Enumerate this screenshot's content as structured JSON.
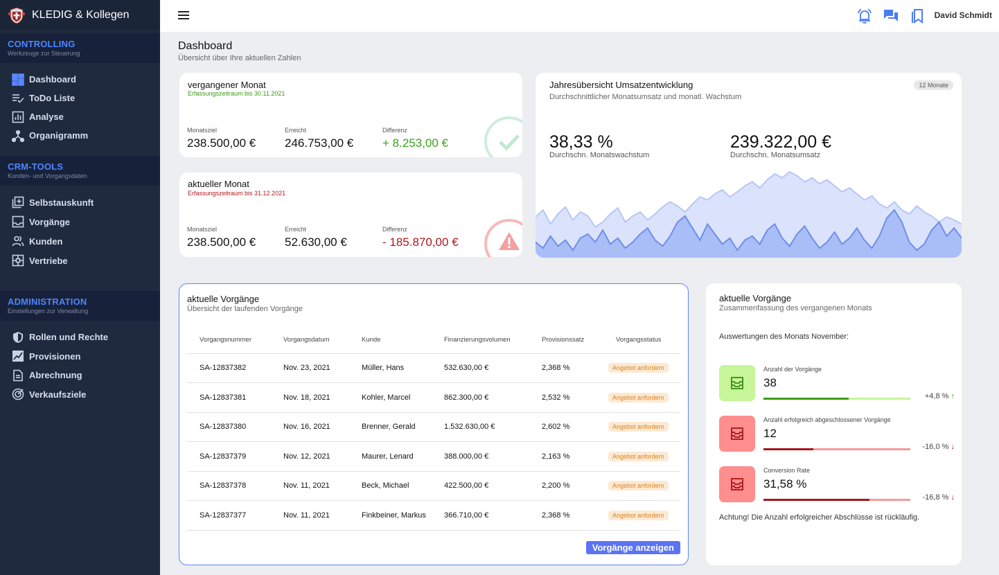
{
  "sidebar": {
    "brand": "KLEDIG & Kollegen",
    "sections": [
      {
        "title": "CONTROLLING",
        "subtitle": "Werkzeuge zur Steuerung",
        "items": [
          {
            "label": "Dashboard",
            "icon": "dashboard-icon"
          },
          {
            "label": "ToDo Liste",
            "icon": "checklist-icon"
          },
          {
            "label": "Analyse",
            "icon": "bar-chart-icon"
          },
          {
            "label": "Organigramm",
            "icon": "org-chart-icon"
          }
        ]
      },
      {
        "title": "CRM-TOOLS",
        "subtitle": "Kunden- und Vorgangsdaten",
        "items": [
          {
            "label": "Selbstauskunft",
            "icon": "add-document-icon"
          },
          {
            "label": "Vorgänge",
            "icon": "inbox-icon"
          },
          {
            "label": "Kunden",
            "icon": "users-icon"
          },
          {
            "label": "Vertriebe",
            "icon": "network-icon"
          }
        ]
      },
      {
        "title": "ADMINISTRATION",
        "subtitle": "Einstellungen zur Verwaltung",
        "items": [
          {
            "label": "Rollen und Rechte",
            "icon": "shield-icon"
          },
          {
            "label": "Provisionen",
            "icon": "trend-icon"
          },
          {
            "label": "Abrechnung",
            "icon": "document-icon"
          },
          {
            "label": "Verkaufsziele",
            "icon": "target-icon"
          }
        ]
      }
    ]
  },
  "topbar": {
    "user": "David Schmidt",
    "icons": [
      "alarm-icon",
      "chat-icon",
      "bookmarks-icon"
    ]
  },
  "page": {
    "title": "Dashboard",
    "subtitle": "Übersicht über Ihre aktuellen Zahlen"
  },
  "kpi_prev": {
    "title": "vergangener Monat",
    "period": "Erfassungszeitraum bis 30.11.2021",
    "period_color": "#3a9a12",
    "target_label": "Monatsziel",
    "target": "238.500,00 €",
    "reached_label": "Erreicht",
    "reached": "246.753,00 €",
    "diff_label": "Differenz",
    "diff": "+ 8.253,00 €",
    "diff_color": "#3aa317"
  },
  "kpi_curr": {
    "title": "aktueller Monat",
    "period": "Erfassungszeitraum bis 31.12.2021",
    "period_color": "#b3161b",
    "target_label": "Monatsziel",
    "target": "238.500,00 €",
    "reached_label": "Erreicht",
    "reached": "52.630,00 €",
    "diff_label": "Differenz",
    "diff": "- 185.870,00 €",
    "diff_color": "#b3161b"
  },
  "annual": {
    "title": "Jahresübersicht Umsatzentwicklung",
    "subtitle": "Durchschnittlicher Monatsumsatz und monatl. Wachstum",
    "badge": "12 Monate",
    "growth_value": "38,33 %",
    "growth_label": "Durchschn. Monatswachstum",
    "revenue_value": "239.322,00 €",
    "revenue_label": "Durchschn. Monatsumsatz"
  },
  "chart_data": {
    "type": "area",
    "title": "",
    "series": [
      {
        "values": [
          35,
          42,
          28,
          38,
          45,
          32,
          40,
          36,
          25,
          30,
          38,
          44,
          30,
          36,
          40,
          32,
          38,
          45,
          50,
          46,
          40,
          48,
          55,
          52,
          58,
          62,
          55,
          60,
          66,
          70,
          64,
          72,
          78,
          74,
          80,
          76,
          70,
          74,
          68,
          72,
          66,
          60,
          64,
          58,
          52,
          56,
          48,
          44,
          50,
          42,
          38,
          46,
          40,
          36,
          30,
          35,
          32,
          28
        ]
      },
      {
        "values": [
          10,
          4,
          16,
          6,
          12,
          2,
          14,
          18,
          10,
          22,
          8,
          14,
          4,
          10,
          18,
          24,
          12,
          6,
          16,
          30,
          36,
          24,
          12,
          28,
          18,
          8,
          14,
          2,
          12,
          16,
          8,
          22,
          28,
          14,
          6,
          18,
          26,
          14,
          4,
          10,
          20,
          8,
          14,
          24,
          12,
          4,
          16,
          34,
          42,
          30,
          10,
          2,
          8,
          22,
          30,
          16,
          24,
          14
        ]
      }
    ]
  },
  "processes": {
    "title": "aktuelle Vorgänge",
    "subtitle": "Übersicht der laufenden Vorgänge",
    "columns": [
      "Vorgangsnummer",
      "Vorgangsdatum",
      "Kunde",
      "Finanzierungsvolumen",
      "Provisionssatz",
      "Vorgangsstatus"
    ],
    "rows": [
      [
        "SA-12837382",
        "Nov. 23, 2021",
        "Müller, Hans",
        "532.630,00 €",
        "2,368 %",
        "Angebot anfordern"
      ],
      [
        "SA-12837381",
        "Nov. 18, 2021",
        "Kohler, Marcel",
        "862.300,00 €",
        "2,532 %",
        "Angebot anfordern"
      ],
      [
        "SA-12837380",
        "Nov. 16, 2021",
        "Brenner, Gerald",
        "1.532.630,00 €",
        "2,602 %",
        "Angebot anfordern"
      ],
      [
        "SA-12837379",
        "Nov. 12, 2021",
        "Maurer, Lenard",
        "388.000,00 €",
        "2,163 %",
        "Angebot anfordern"
      ],
      [
        "SA-12837378",
        "Nov. 11, 2021",
        "Beck, Michael",
        "422.500,00 €",
        "2,200 %",
        "Angebot anfordern"
      ],
      [
        "SA-12837377",
        "Nov. 11, 2021",
        "Finkbeiner, Markus",
        "366.710,00 €",
        "2,368 %",
        "Angebot anfordern"
      ]
    ],
    "button": "Vorgänge anzeigen"
  },
  "summary": {
    "title": "aktuelle Vorgänge",
    "subtitle": "Zusammenfassung des vergangenen Monats",
    "evaluation": "Auswertungen des Monats November:",
    "stats": [
      {
        "label": "Anzahl der Vorgänge",
        "value": "38",
        "delta": "+4,8 %",
        "progress": 0.58,
        "box_color": "#c6f59a",
        "icon_color": "#3d8d12",
        "bar_color": "#3d9a14",
        "track_color": "#c4f59c",
        "arrow": "↑",
        "arrow_color": "#3aa317"
      },
      {
        "label": "Anzahl erfolgreich abgeschlossener Vorgänge",
        "value": "12",
        "delta": "-16,0 %",
        "progress": 0.34,
        "box_color": "#ff8e8e",
        "icon_color": "#a5161b",
        "bar_color": "#a5161b",
        "track_color": "#f59a9a",
        "arrow": "↓",
        "arrow_color": "#b3161b"
      },
      {
        "label": "Conversion Rate",
        "value": "31,58 %",
        "delta": "-16,8 %",
        "progress": 0.72,
        "box_color": "#ff8e8e",
        "icon_color": "#a5161b",
        "bar_color": "#a5161b",
        "track_color": "#f59a9a",
        "arrow": "↓",
        "arrow_color": "#b3161b"
      }
    ],
    "warning": "Achtung! Die Anzahl erfolgreicher Abschlüsse ist rückläufig."
  }
}
